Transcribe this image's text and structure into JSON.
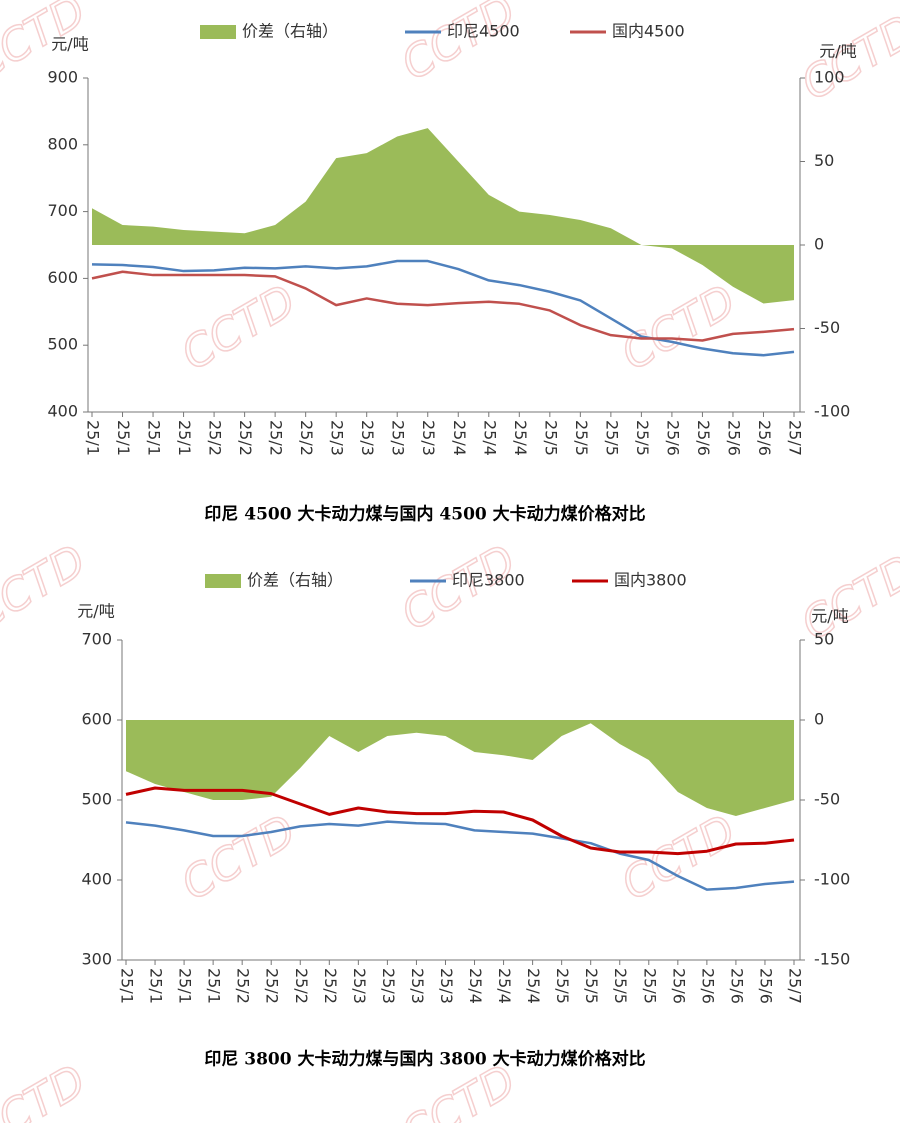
{
  "watermark": "CCTD",
  "chart_data": [
    {
      "type": "line",
      "title": "印尼 4500 大卡动力煤与国内 4500 大卡动力煤价格对比",
      "y_label": "元/吨",
      "y2_label": "元/吨",
      "categories": [
        "25/1",
        "25/1",
        "25/1",
        "25/1",
        "25/2",
        "25/2",
        "25/2",
        "25/2",
        "25/3",
        "25/3",
        "25/3",
        "25/3",
        "25/4",
        "25/4",
        "25/4",
        "25/5",
        "25/5",
        "25/5",
        "25/5",
        "25/6",
        "25/6",
        "25/6",
        "25/6",
        "25/7"
      ],
      "ylim": [
        400,
        900
      ],
      "yticks": [
        400,
        500,
        600,
        700,
        800,
        900
      ],
      "y2lim": [
        -100,
        100
      ],
      "y2ticks": [
        -100,
        -50,
        0,
        50,
        100
      ],
      "series": [
        {
          "name": "价差（右轴）",
          "type": "area",
          "axis": "y2",
          "color": "#9bbb59",
          "values": [
            22,
            12,
            11,
            9,
            8,
            7,
            12,
            26,
            52,
            55,
            65,
            70,
            50,
            30,
            20,
            18,
            15,
            10,
            0,
            -2,
            -12,
            -25,
            -35,
            -33
          ]
        },
        {
          "name": "印尼4500",
          "type": "line",
          "color": "#4f81bd",
          "values": [
            621,
            620,
            617,
            611,
            612,
            616,
            615,
            618,
            615,
            618,
            626,
            626,
            614,
            597,
            590,
            580,
            567,
            540,
            513,
            505,
            495,
            488,
            485,
            490
          ]
        },
        {
          "name": "国内4500",
          "type": "line",
          "color": "#c0504d",
          "values": [
            600,
            610,
            605,
            605,
            605,
            605,
            603,
            585,
            560,
            570,
            562,
            560,
            563,
            565,
            562,
            552,
            530,
            515,
            510,
            510,
            507,
            517,
            520,
            524
          ]
        }
      ]
    },
    {
      "type": "line",
      "title": "印尼 3800 大卡动力煤与国内 3800 大卡动力煤价格对比",
      "y_label": "元/吨",
      "y2_label": "元/吨",
      "categories": [
        "25/1",
        "25/1",
        "25/1",
        "25/1",
        "25/2",
        "25/2",
        "25/2",
        "25/2",
        "25/3",
        "25/3",
        "25/3",
        "25/3",
        "25/4",
        "25/4",
        "25/4",
        "25/5",
        "25/5",
        "25/5",
        "25/5",
        "25/6",
        "25/6",
        "25/6",
        "25/6",
        "25/7"
      ],
      "ylim": [
        300,
        700
      ],
      "yticks": [
        300,
        400,
        500,
        600,
        700
      ],
      "y2lim": [
        -150,
        50
      ],
      "y2ticks": [
        -150,
        -100,
        -50,
        0,
        50
      ],
      "series": [
        {
          "name": "价差（右轴）",
          "type": "area",
          "axis": "y2",
          "color": "#9bbb59",
          "values": [
            -32,
            -40,
            -45,
            -50,
            -50,
            -48,
            -30,
            -10,
            -20,
            -10,
            -8,
            -10,
            -20,
            -22,
            -25,
            -10,
            -2,
            -15,
            -25,
            -45,
            -55,
            -60,
            -55,
            -50
          ]
        },
        {
          "name": "印尼3800",
          "type": "line",
          "color": "#4f81bd",
          "values": [
            472,
            468,
            462,
            455,
            455,
            460,
            467,
            470,
            468,
            473,
            471,
            470,
            462,
            460,
            458,
            452,
            446,
            433,
            425,
            405,
            388,
            390,
            395,
            398
          ]
        },
        {
          "name": "国内3800",
          "type": "line",
          "color": "#c00000",
          "values": [
            507,
            515,
            512,
            512,
            512,
            508,
            495,
            482,
            490,
            485,
            483,
            483,
            486,
            485,
            475,
            455,
            440,
            435,
            435,
            433,
            436,
            445,
            446,
            450
          ]
        }
      ]
    }
  ]
}
